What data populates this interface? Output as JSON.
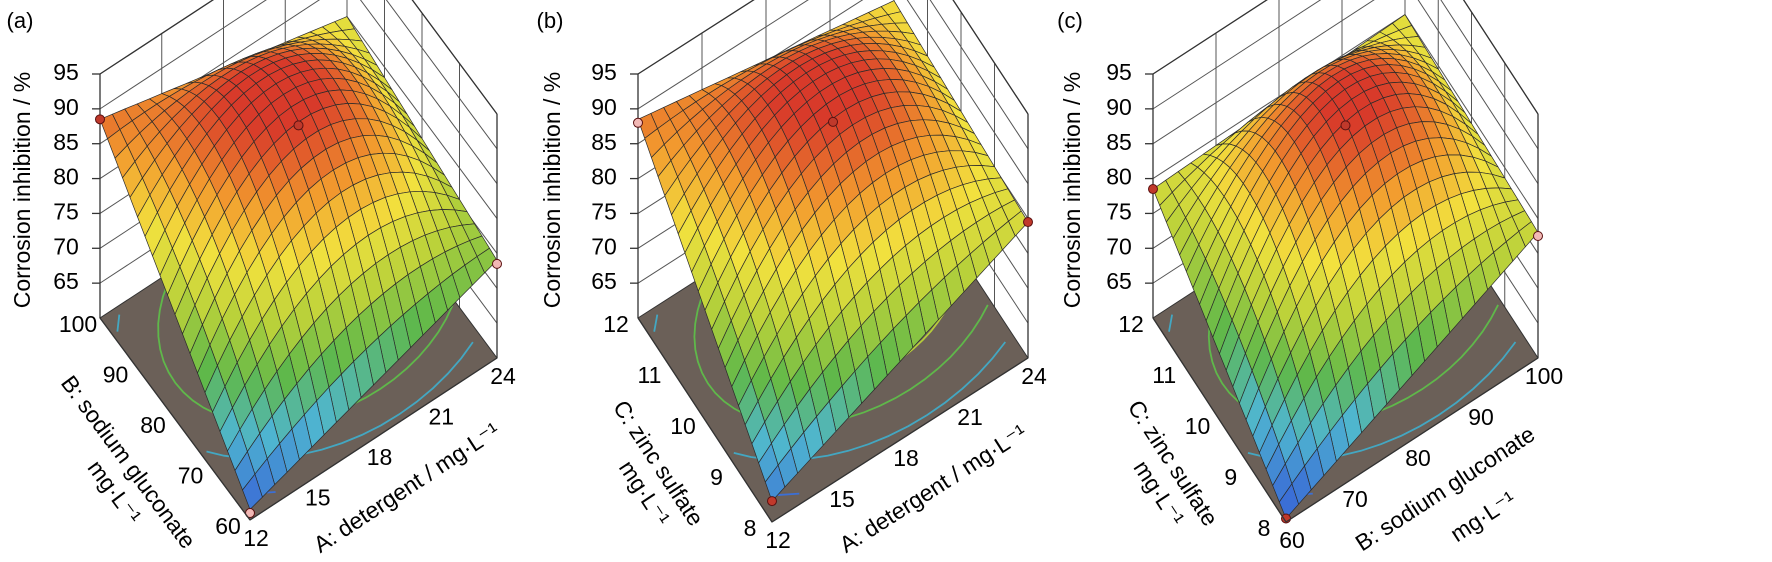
{
  "colors": {
    "surface_scale": [
      "#3b6fd6",
      "#4fb6d0",
      "#5fb84a",
      "#b8d13a",
      "#f2e13e",
      "#f29a2e",
      "#d83a2a"
    ],
    "floor": "#6b6058",
    "contour_colors": [
      "#f0a020",
      "#b6cc3a",
      "#5fb84a",
      "#43a7c2",
      "#3b6fd6"
    ],
    "design_point_above": "#c0392b",
    "design_point_below": "#f2b8b5"
  },
  "chart_data": [
    {
      "type": "surface3d",
      "panel_label": "(a)",
      "zlabel": "Corrosion inhibition / %",
      "zticks": [
        "95",
        "90",
        "85",
        "80",
        "75",
        "70",
        "65"
      ],
      "zlim": [
        60,
        95
      ],
      "xlabel": "A: detergent / mg·L⁻¹",
      "xticks": [
        "12",
        "15",
        "18",
        "21",
        "24"
      ],
      "xlim": [
        12,
        24
      ],
      "ylabel_line1": "B: sodium gluconate",
      "ylabel_line2": "mg·L⁻¹",
      "yticks": [
        "60",
        "70",
        "80",
        "90",
        "100"
      ],
      "ylim": [
        60,
        100
      ],
      "surface": {
        "peak": 91,
        "corner_front": 61.5,
        "corner_left": 88.5,
        "corner_right": 74,
        "corner_back": 80
      },
      "design_points": [
        {
          "x": 12,
          "y": 100,
          "z": 88.5,
          "above": true
        },
        {
          "x": 18,
          "y": 80,
          "z": 90.5,
          "above": true
        },
        {
          "x": 24,
          "y": 60,
          "z": 73.5,
          "above": false
        },
        {
          "x": 12,
          "y": 60,
          "z": 61.0,
          "above": false
        }
      ]
    },
    {
      "type": "surface3d",
      "panel_label": "(b)",
      "zlabel": "Corrosion inhibition / %",
      "zticks": [
        "95",
        "90",
        "85",
        "80",
        "75",
        "70",
        "65"
      ],
      "zlim": [
        60,
        95
      ],
      "xlabel": "A: detergent / mg·L⁻¹",
      "xticks": [
        "12",
        "15",
        "18",
        "21",
        "24"
      ],
      "xlim": [
        12,
        24
      ],
      "ylabel_line1": "C: zinc sulfate",
      "ylabel_line2": "mg·L⁻¹",
      "yticks": [
        "8",
        "9",
        "10",
        "11",
        "12"
      ],
      "ylim": [
        8,
        12
      ],
      "surface": {
        "peak": 91.5,
        "corner_front": 63,
        "corner_left": 88.5,
        "corner_right": 79.5,
        "corner_back": 82
      },
      "design_points": [
        {
          "x": 12,
          "y": 12,
          "z": 88.0,
          "above": false
        },
        {
          "x": 18,
          "y": 10,
          "z": 91.0,
          "above": true
        },
        {
          "x": 24,
          "y": 8,
          "z": 79.5,
          "above": true
        },
        {
          "x": 12,
          "y": 8,
          "z": 63.0,
          "above": true
        }
      ]
    },
    {
      "type": "surface3d",
      "panel_label": "(c)",
      "zlabel": "Corrosion inhibition / %",
      "zticks": [
        "95",
        "90",
        "85",
        "80",
        "75",
        "70",
        "65"
      ],
      "zlim": [
        60,
        95
      ],
      "xlabel_line1": "B: sodium gluconate",
      "xlabel_line2": "mg·L⁻¹",
      "xticks": [
        "60",
        "70",
        "80",
        "90",
        "100"
      ],
      "xlim": [
        60,
        100
      ],
      "ylabel_line1": "C: zinc sulfate",
      "ylabel_line2": "mg·L⁻¹",
      "yticks": [
        "8",
        "9",
        "10",
        "11",
        "12"
      ],
      "ylim": [
        8,
        12
      ],
      "surface": {
        "peak": 91,
        "corner_front": 60.5,
        "corner_left": 78.5,
        "corner_right": 78,
        "corner_back": 80
      },
      "design_points": [
        {
          "x": 60,
          "y": 12,
          "z": 78.5,
          "above": true
        },
        {
          "x": 80,
          "y": 10,
          "z": 90.5,
          "above": true
        },
        {
          "x": 100,
          "y": 8,
          "z": 77.5,
          "above": false
        },
        {
          "x": 60,
          "y": 8,
          "z": 60.5,
          "above": true
        }
      ]
    }
  ]
}
